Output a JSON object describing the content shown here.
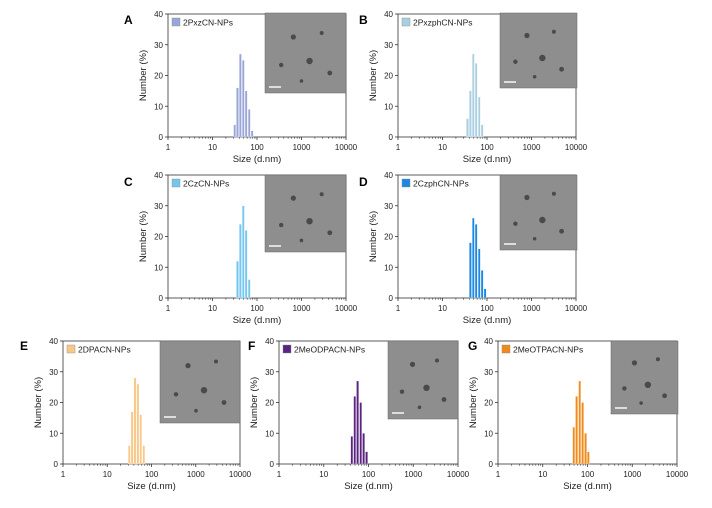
{
  "axis_common": {
    "xlabel": "Size (d.nm)",
    "ylabel": "Number (%)",
    "xscale": "log",
    "xlim": [
      1,
      10000
    ],
    "ylim": [
      0,
      40
    ],
    "xticks": [
      1,
      10,
      100,
      1000,
      10000
    ],
    "xtick_labels": [
      "1",
      "10",
      "100",
      "1000",
      "10000"
    ],
    "yticks": [
      0,
      10,
      20,
      30,
      40
    ],
    "ytick_labels": [
      "0",
      "10",
      "20",
      "30",
      "40"
    ]
  },
  "chart_data": [
    {
      "type": "bar",
      "panel": "A",
      "legend": "2PxzCN-NPs",
      "color": "#9aa6d8",
      "inset": "tem-micrograph",
      "x": [
        32,
        37,
        43,
        50,
        58,
        68,
        79
      ],
      "values": [
        4,
        16,
        27,
        25,
        15,
        9,
        2
      ]
    },
    {
      "type": "bar",
      "panel": "B",
      "legend": "2PxzphCN-NPs",
      "color": "#a9cfe0",
      "inset": "tem-micrograph",
      "x": [
        37,
        43,
        50,
        58,
        68,
        79
      ],
      "values": [
        6,
        15,
        27,
        24,
        13,
        4
      ]
    },
    {
      "type": "bar",
      "panel": "C",
      "legend": "2CzCN-NPs",
      "color": "#74c6ef",
      "inset": "tem-micrograph",
      "x": [
        37,
        43,
        50,
        58,
        68
      ],
      "values": [
        12,
        24,
        30,
        22,
        6
      ]
    },
    {
      "type": "bar",
      "panel": "D",
      "legend": "2CzphCN-NPs",
      "color": "#1e88e0",
      "inset": "tem-micrograph",
      "x": [
        43,
        50,
        58,
        68,
        79,
        92
      ],
      "values": [
        18,
        26,
        24,
        16,
        9,
        3
      ]
    },
    {
      "type": "bar",
      "panel": "E",
      "legend": "2DPACN-NPs",
      "color": "#f8c888",
      "inset": "tem-micrograph",
      "x": [
        32,
        37,
        43,
        50,
        58,
        68
      ],
      "values": [
        6,
        17,
        28,
        26,
        16,
        6
      ]
    },
    {
      "type": "bar",
      "panel": "F",
      "legend": "2MeODPACN-NPs",
      "color": "#5a2480",
      "inset": "tem-micrograph",
      "x": [
        43,
        50,
        58,
        68,
        79,
        92
      ],
      "values": [
        9,
        22,
        27,
        20,
        10,
        4
      ]
    },
    {
      "type": "bar",
      "panel": "G",
      "legend": "2MeOTPACN-NPs",
      "color": "#f08a1a",
      "inset": "tem-micrograph",
      "x": [
        50,
        58,
        68,
        79,
        92,
        106
      ],
      "values": [
        12,
        22,
        27,
        20,
        10,
        4
      ]
    }
  ]
}
